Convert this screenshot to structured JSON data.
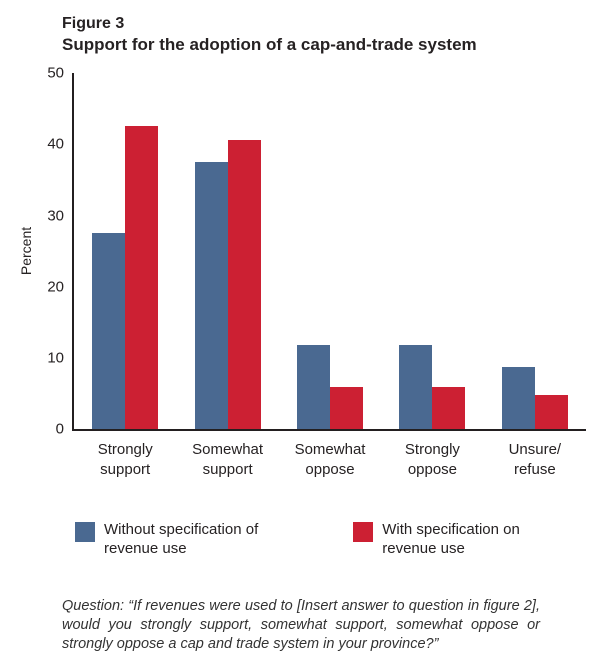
{
  "header": {
    "figure_label": "Figure 3",
    "title": "Support for the adoption of a cap-and-trade system"
  },
  "chart_data": {
    "type": "bar",
    "title": "Support for the adoption of a cap-and-trade system",
    "xlabel": "",
    "ylabel": "Percent",
    "ylim": [
      0,
      50
    ],
    "yticks": [
      0,
      10,
      20,
      30,
      40,
      50
    ],
    "grid": false,
    "legend_position": "bottom",
    "categories": [
      "Strongly support",
      "Somewhat support",
      "Somewhat oppose",
      "Strongly oppose",
      "Unsure/refuse"
    ],
    "category_label_lines": [
      [
        "Strongly",
        "support"
      ],
      [
        "Somewhat",
        "support"
      ],
      [
        "Somewhat",
        "oppose"
      ],
      [
        "Strongly",
        "oppose"
      ],
      [
        "Unsure/",
        "refuse"
      ]
    ],
    "series": [
      {
        "name": "Without specification of revenue use",
        "label_lines": [
          "Without specification of",
          "revenue use"
        ],
        "color": "#4a6991",
        "values": [
          27.6,
          37.6,
          11.8,
          11.8,
          8.8
        ]
      },
      {
        "name": "With specification on revenue use",
        "label_lines": [
          "With specification on",
          "revenue use"
        ],
        "color": "#cc2033",
        "values": [
          42.6,
          40.6,
          5.9,
          5.9,
          4.8
        ]
      }
    ]
  },
  "footer": {
    "question": "Question: “If revenues were used to [Insert answer to question in figure 2], would you strongly support, somewhat support, somewhat oppose or strongly oppose a cap and trade system in your province?”"
  }
}
